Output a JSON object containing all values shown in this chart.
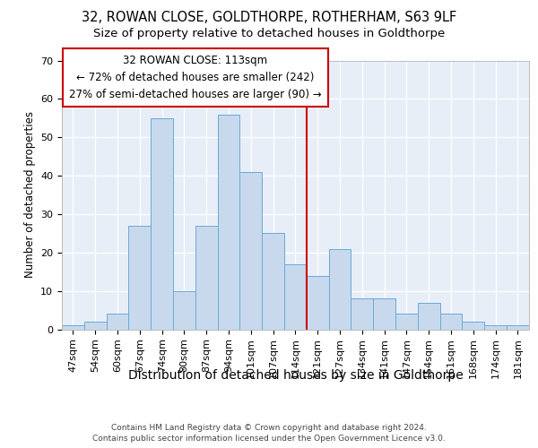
{
  "title1": "32, ROWAN CLOSE, GOLDTHORPE, ROTHERHAM, S63 9LF",
  "title2": "Size of property relative to detached houses in Goldthorpe",
  "xlabel": "Distribution of detached houses by size in Goldthorpe",
  "ylabel": "Number of detached properties",
  "categories": [
    "47sqm",
    "54sqm",
    "60sqm",
    "67sqm",
    "74sqm",
    "80sqm",
    "87sqm",
    "94sqm",
    "101sqm",
    "107sqm",
    "114sqm",
    "121sqm",
    "127sqm",
    "134sqm",
    "141sqm",
    "147sqm",
    "154sqm",
    "161sqm",
    "168sqm",
    "174sqm",
    "181sqm"
  ],
  "values": [
    1,
    2,
    4,
    27,
    55,
    10,
    27,
    56,
    41,
    25,
    17,
    14,
    21,
    8,
    8,
    4,
    7,
    4,
    2,
    1,
    1
  ],
  "bar_color": "#c8d9ee",
  "bar_edge_color": "#6aaad4",
  "vline_color": "#cc0000",
  "vline_x": 10.5,
  "annotation_line1": "32 ROWAN CLOSE: 113sqm",
  "annotation_line2": "← 72% of detached houses are smaller (242)",
  "annotation_line3": "27% of semi-detached houses are larger (90) →",
  "ylim": [
    0,
    70
  ],
  "yticks": [
    0,
    10,
    20,
    30,
    40,
    50,
    60,
    70
  ],
  "bg_color": "#e8eef8",
  "grid_color": "#ffffff",
  "footer_line1": "Contains HM Land Registry data © Crown copyright and database right 2024.",
  "footer_line2": "Contains public sector information licensed under the Open Government Licence v3.0.",
  "title1_fontsize": 10.5,
  "title2_fontsize": 9.5,
  "xlabel_fontsize": 10,
  "ylabel_fontsize": 8.5,
  "tick_fontsize": 8,
  "annot_fontsize": 8.5,
  "footer_fontsize": 6.5
}
